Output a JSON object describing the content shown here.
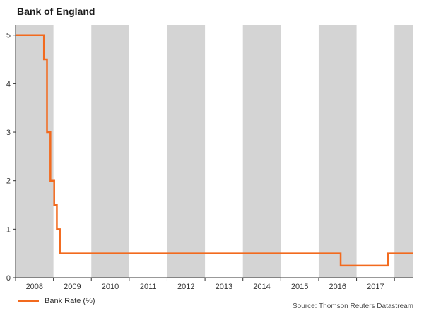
{
  "chart_data": {
    "type": "line",
    "subtype": "step",
    "title": "Bank of England",
    "xlabel": "",
    "ylabel": "",
    "source": "Source: Thomson Reuters Datastream",
    "x_range": [
      2008,
      2018.5
    ],
    "y_range": [
      0,
      5.2
    ],
    "x_tick_years": [
      2008,
      2009,
      2010,
      2011,
      2012,
      2013,
      2014,
      2015,
      2016,
      2017
    ],
    "y_ticks": [
      0,
      1,
      2,
      3,
      4,
      5
    ],
    "shaded_years": [
      2008,
      2010,
      2012,
      2014,
      2016,
      2018
    ],
    "grid": false,
    "legend_position": "bottom-left",
    "colors": {
      "band": "#D4D4D4",
      "axis": "#333333",
      "line": "#F26A1E",
      "text": "#333333"
    },
    "series": [
      {
        "name": "Bank Rate (%)",
        "color": "#F26A1E",
        "points": [
          [
            2008.0,
            5.0
          ],
          [
            2008.75,
            4.5
          ],
          [
            2008.83,
            3.0
          ],
          [
            2008.92,
            2.0
          ],
          [
            2009.02,
            1.5
          ],
          [
            2009.09,
            1.0
          ],
          [
            2009.17,
            0.5
          ],
          [
            2016.58,
            0.25
          ],
          [
            2017.83,
            0.5
          ]
        ]
      }
    ]
  }
}
